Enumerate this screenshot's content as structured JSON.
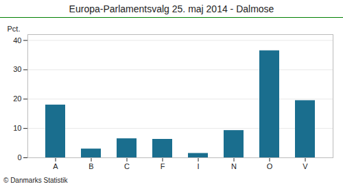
{
  "chart_data": {
    "type": "bar",
    "title": "Europa-Parlamentsvalg 25. maj 2014 - Dalmose",
    "categories": [
      "A",
      "B",
      "C",
      "F",
      "I",
      "N",
      "O",
      "V"
    ],
    "values": [
      18.0,
      3.0,
      6.5,
      6.3,
      1.5,
      9.3,
      36.5,
      19.5
    ],
    "color": "#1a6e8e",
    "ylabel": "Pct.",
    "ylim": [
      0,
      42
    ],
    "yticks": [
      0,
      10,
      20,
      30,
      40
    ],
    "grid": true,
    "annotations": [
      "© Danmarks Statistik"
    ]
  }
}
